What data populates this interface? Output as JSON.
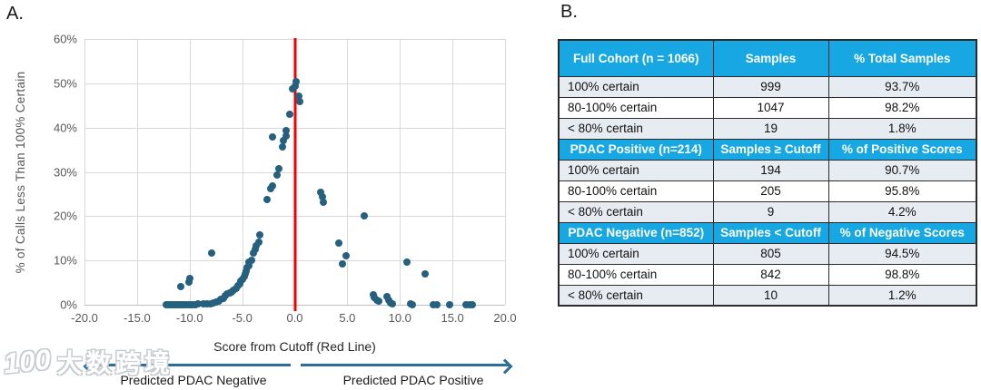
{
  "chart_data": {
    "type": "scatter",
    "title": "",
    "xlabel": "Score from Cutoff (Red Line)",
    "ylabel": "% of Calls Less Than 100% Certain",
    "xlim": [
      -20,
      20
    ],
    "xstep": 5,
    "ylim": [
      0,
      60
    ],
    "ystep": 10,
    "x_tick_labels": [
      "-20.0",
      "-15.0",
      "-10.0",
      "-5.0",
      "0.0",
      "5.0",
      "10.0",
      "15.0",
      "20.0"
    ],
    "y_tick_labels": [
      "0%",
      "10%",
      "20%",
      "30%",
      "40%",
      "50%",
      "60%"
    ],
    "grid": true,
    "cutoff_line_x": 0,
    "point_color": "#26607f",
    "cutoff_color": "#f40000",
    "gridline_color": "#d9d9d9",
    "points": [
      [
        -12.2,
        0
      ],
      [
        -12.05,
        0
      ],
      [
        -11.9,
        0
      ],
      [
        -11.75,
        0
      ],
      [
        -11.6,
        0
      ],
      [
        -11.45,
        0
      ],
      [
        -11.3,
        0
      ],
      [
        -11.15,
        0
      ],
      [
        -11.0,
        0
      ],
      [
        -10.85,
        0
      ],
      [
        -10.7,
        0
      ],
      [
        -10.5,
        0
      ],
      [
        -10.3,
        0
      ],
      [
        -10.1,
        0.1
      ],
      [
        -9.9,
        0.1
      ],
      [
        -9.7,
        0.1
      ],
      [
        -9.5,
        0.1
      ],
      [
        -9.2,
        0.2
      ],
      [
        -8.7,
        0.2
      ],
      [
        -8.3,
        0.3
      ],
      [
        -8.0,
        0.3
      ],
      [
        -7.7,
        0.5
      ],
      [
        -7.5,
        0.7
      ],
      [
        -7.2,
        0.9
      ],
      [
        -7.0,
        1.2
      ],
      [
        -6.8,
        1.5
      ],
      [
        -6.6,
        2.0
      ],
      [
        -6.4,
        2.4
      ],
      [
        -6.2,
        2.6
      ],
      [
        -6.0,
        2.9
      ],
      [
        -5.8,
        3.3
      ],
      [
        -5.6,
        3.6
      ],
      [
        -5.4,
        4.2
      ],
      [
        -5.2,
        4.8
      ],
      [
        -5.1,
        5.3
      ],
      [
        -5.0,
        5.8
      ],
      [
        -4.8,
        6.3
      ],
      [
        -4.7,
        6.9
      ],
      [
        -4.6,
        7.6
      ],
      [
        -4.5,
        8.3
      ],
      [
        -4.4,
        8.8
      ],
      [
        -4.35,
        9.6
      ],
      [
        -4.1,
        10.1
      ],
      [
        -3.95,
        11.6
      ],
      [
        -3.8,
        12.4
      ],
      [
        -3.65,
        13.4
      ],
      [
        -3.45,
        14.2
      ],
      [
        -3.3,
        15.7
      ],
      [
        -7.9,
        11.7
      ],
      [
        -10.0,
        5.9
      ],
      [
        -10.1,
        5.1
      ],
      [
        -10.8,
        4.1
      ],
      [
        -2.6,
        23.8
      ],
      [
        -2.3,
        26.3
      ],
      [
        -2.15,
        26.8
      ],
      [
        -1.7,
        29.2
      ],
      [
        -1.55,
        30.7
      ],
      [
        -1.15,
        35.7
      ],
      [
        -1.05,
        37.1
      ],
      [
        -2.1,
        37.8
      ],
      [
        -0.85,
        38.1
      ],
      [
        -0.8,
        39.3
      ],
      [
        -0.5,
        43.1
      ],
      [
        -0.2,
        48.8
      ],
      [
        0.0,
        49.4
      ],
      [
        0.15,
        50.3
      ],
      [
        0.4,
        47.0
      ],
      [
        0.5,
        45.9
      ],
      [
        2.5,
        25.3
      ],
      [
        2.65,
        24.3
      ],
      [
        2.7,
        23.1
      ],
      [
        6.6,
        20.1
      ],
      [
        4.2,
        14.0
      ],
      [
        4.85,
        11.0
      ],
      [
        4.5,
        9.2
      ],
      [
        10.7,
        9.7
      ],
      [
        12.4,
        6.9
      ],
      [
        7.5,
        2.3
      ],
      [
        7.6,
        1.6
      ],
      [
        7.8,
        1.1
      ],
      [
        8.0,
        0.8
      ],
      [
        8.8,
        1.9
      ],
      [
        8.9,
        1.0
      ],
      [
        9.1,
        0.5
      ],
      [
        9.3,
        0.3
      ],
      [
        11.0,
        0.2
      ],
      [
        11.2,
        0.1
      ],
      [
        13.2,
        0
      ],
      [
        13.5,
        0
      ],
      [
        14.7,
        0
      ],
      [
        16.3,
        0
      ],
      [
        16.6,
        0
      ],
      [
        16.9,
        0
      ]
    ]
  },
  "panel_a": {
    "label": "A.",
    "annotations": {
      "negative_label": "Predicted PDAC Negative",
      "positive_label": "Predicted PDAC Positive",
      "arrow_color": "#2c6e96"
    }
  },
  "panel_b": {
    "label": "B.",
    "table": {
      "header_bg": "#17a8e3",
      "alt_row_bg": "#e7ebf2",
      "sections": [
        {
          "header": [
            "Full Cohort (n = 1066)",
            "Samples",
            "% Total Samples"
          ],
          "rows": [
            [
              "100% certain",
              "999",
              "93.7%"
            ],
            [
              "80-100% certain",
              "1047",
              "98.2%"
            ],
            [
              "< 80% certain",
              "19",
              "1.8%"
            ]
          ]
        },
        {
          "header": [
            "PDAC Positive (n=214)",
            "Samples ≥ Cutoff",
            "% of Positive Scores"
          ],
          "rows": [
            [
              "100% certain",
              "194",
              "90.7%"
            ],
            [
              "80-100% certain",
              "205",
              "95.8%"
            ],
            [
              "< 80% certain",
              "9",
              "4.2%"
            ]
          ]
        },
        {
          "header": [
            "PDAC Negative (n=852)",
            "Samples < Cutoff",
            "% of Negative Scores"
          ],
          "rows": [
            [
              "100% certain",
              "805",
              "94.5%"
            ],
            [
              "80-100% certain",
              "842",
              "98.8%"
            ],
            [
              "< 80% certain",
              "10",
              "1.2%"
            ]
          ]
        }
      ]
    }
  },
  "watermark": {
    "logo": "100",
    "text": "大数跨境"
  }
}
